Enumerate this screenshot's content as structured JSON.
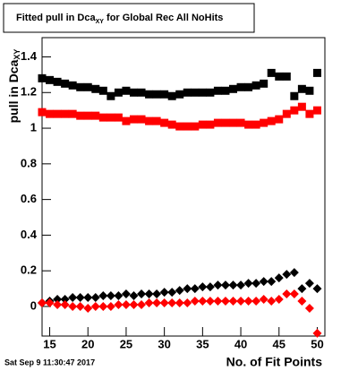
{
  "chart_data": {
    "type": "scatter",
    "title": [
      "Fitted pull in Dca",
      "XY",
      " for Global Rec All NoHits"
    ],
    "y_label": [
      "pull in Dca",
      "XY"
    ],
    "x_label": "No. of Fit Points",
    "timestamp": "Sat Sep  9 11:30:47 2017",
    "x": [
      14,
      15,
      16,
      17,
      18,
      19,
      20,
      21,
      22,
      23,
      24,
      25,
      26,
      27,
      28,
      29,
      30,
      31,
      32,
      33,
      34,
      35,
      36,
      37,
      38,
      39,
      40,
      41,
      42,
      43,
      44,
      45,
      46,
      47,
      48,
      49,
      50
    ],
    "series": [
      {
        "color": "#000000",
        "marker": "square",
        "values": [
          1.28,
          1.27,
          1.26,
          1.25,
          1.24,
          1.23,
          1.23,
          1.22,
          1.21,
          1.18,
          1.2,
          1.21,
          1.2,
          1.2,
          1.19,
          1.19,
          1.19,
          1.18,
          1.19,
          1.2,
          1.2,
          1.2,
          1.2,
          1.21,
          1.21,
          1.22,
          1.23,
          1.23,
          1.24,
          1.25,
          1.31,
          1.29,
          1.29,
          1.18,
          1.22,
          1.21,
          1.31
        ]
      },
      {
        "color": "#ff0000",
        "marker": "square",
        "values": [
          1.09,
          1.08,
          1.08,
          1.08,
          1.08,
          1.07,
          1.07,
          1.07,
          1.06,
          1.06,
          1.06,
          1.04,
          1.05,
          1.05,
          1.04,
          1.04,
          1.03,
          1.02,
          1.01,
          1.01,
          1.01,
          1.02,
          1.02,
          1.03,
          1.03,
          1.03,
          1.03,
          1.02,
          1.02,
          1.03,
          1.04,
          1.05,
          1.08,
          1.1,
          1.12,
          1.08,
          1.1
        ]
      },
      {
        "color": "#000000",
        "marker": "diamond",
        "values": [
          0.02,
          0.03,
          0.04,
          0.04,
          0.05,
          0.05,
          0.05,
          0.05,
          0.06,
          0.06,
          0.06,
          0.07,
          0.06,
          0.07,
          0.07,
          0.07,
          0.08,
          0.08,
          0.09,
          0.1,
          0.1,
          0.11,
          0.11,
          0.12,
          0.12,
          0.12,
          0.12,
          0.13,
          0.13,
          0.14,
          0.14,
          0.16,
          0.18,
          0.19,
          0.1,
          0.13,
          0.1
        ]
      },
      {
        "color": "#ff0000",
        "marker": "diamond",
        "values": [
          0.02,
          0.02,
          0.01,
          0.01,
          0.0,
          0.0,
          -0.01,
          0.0,
          0.0,
          0.0,
          0.01,
          0.01,
          0.01,
          0.01,
          0.02,
          0.02,
          0.02,
          0.02,
          0.02,
          0.02,
          0.03,
          0.03,
          0.03,
          0.03,
          0.03,
          0.03,
          0.03,
          0.03,
          0.03,
          0.04,
          0.03,
          0.04,
          0.07,
          0.07,
          0.03,
          -0.01,
          -0.15
        ]
      }
    ],
    "xlim": [
      14,
      51
    ],
    "ylim": [
      -0.166,
      1.508
    ],
    "xticks": [
      15,
      20,
      25,
      30,
      35,
      40,
      45,
      50
    ],
    "yticks": [
      0,
      0.2,
      0.4,
      0.6,
      0.8,
      1,
      1.2,
      1.4
    ]
  }
}
